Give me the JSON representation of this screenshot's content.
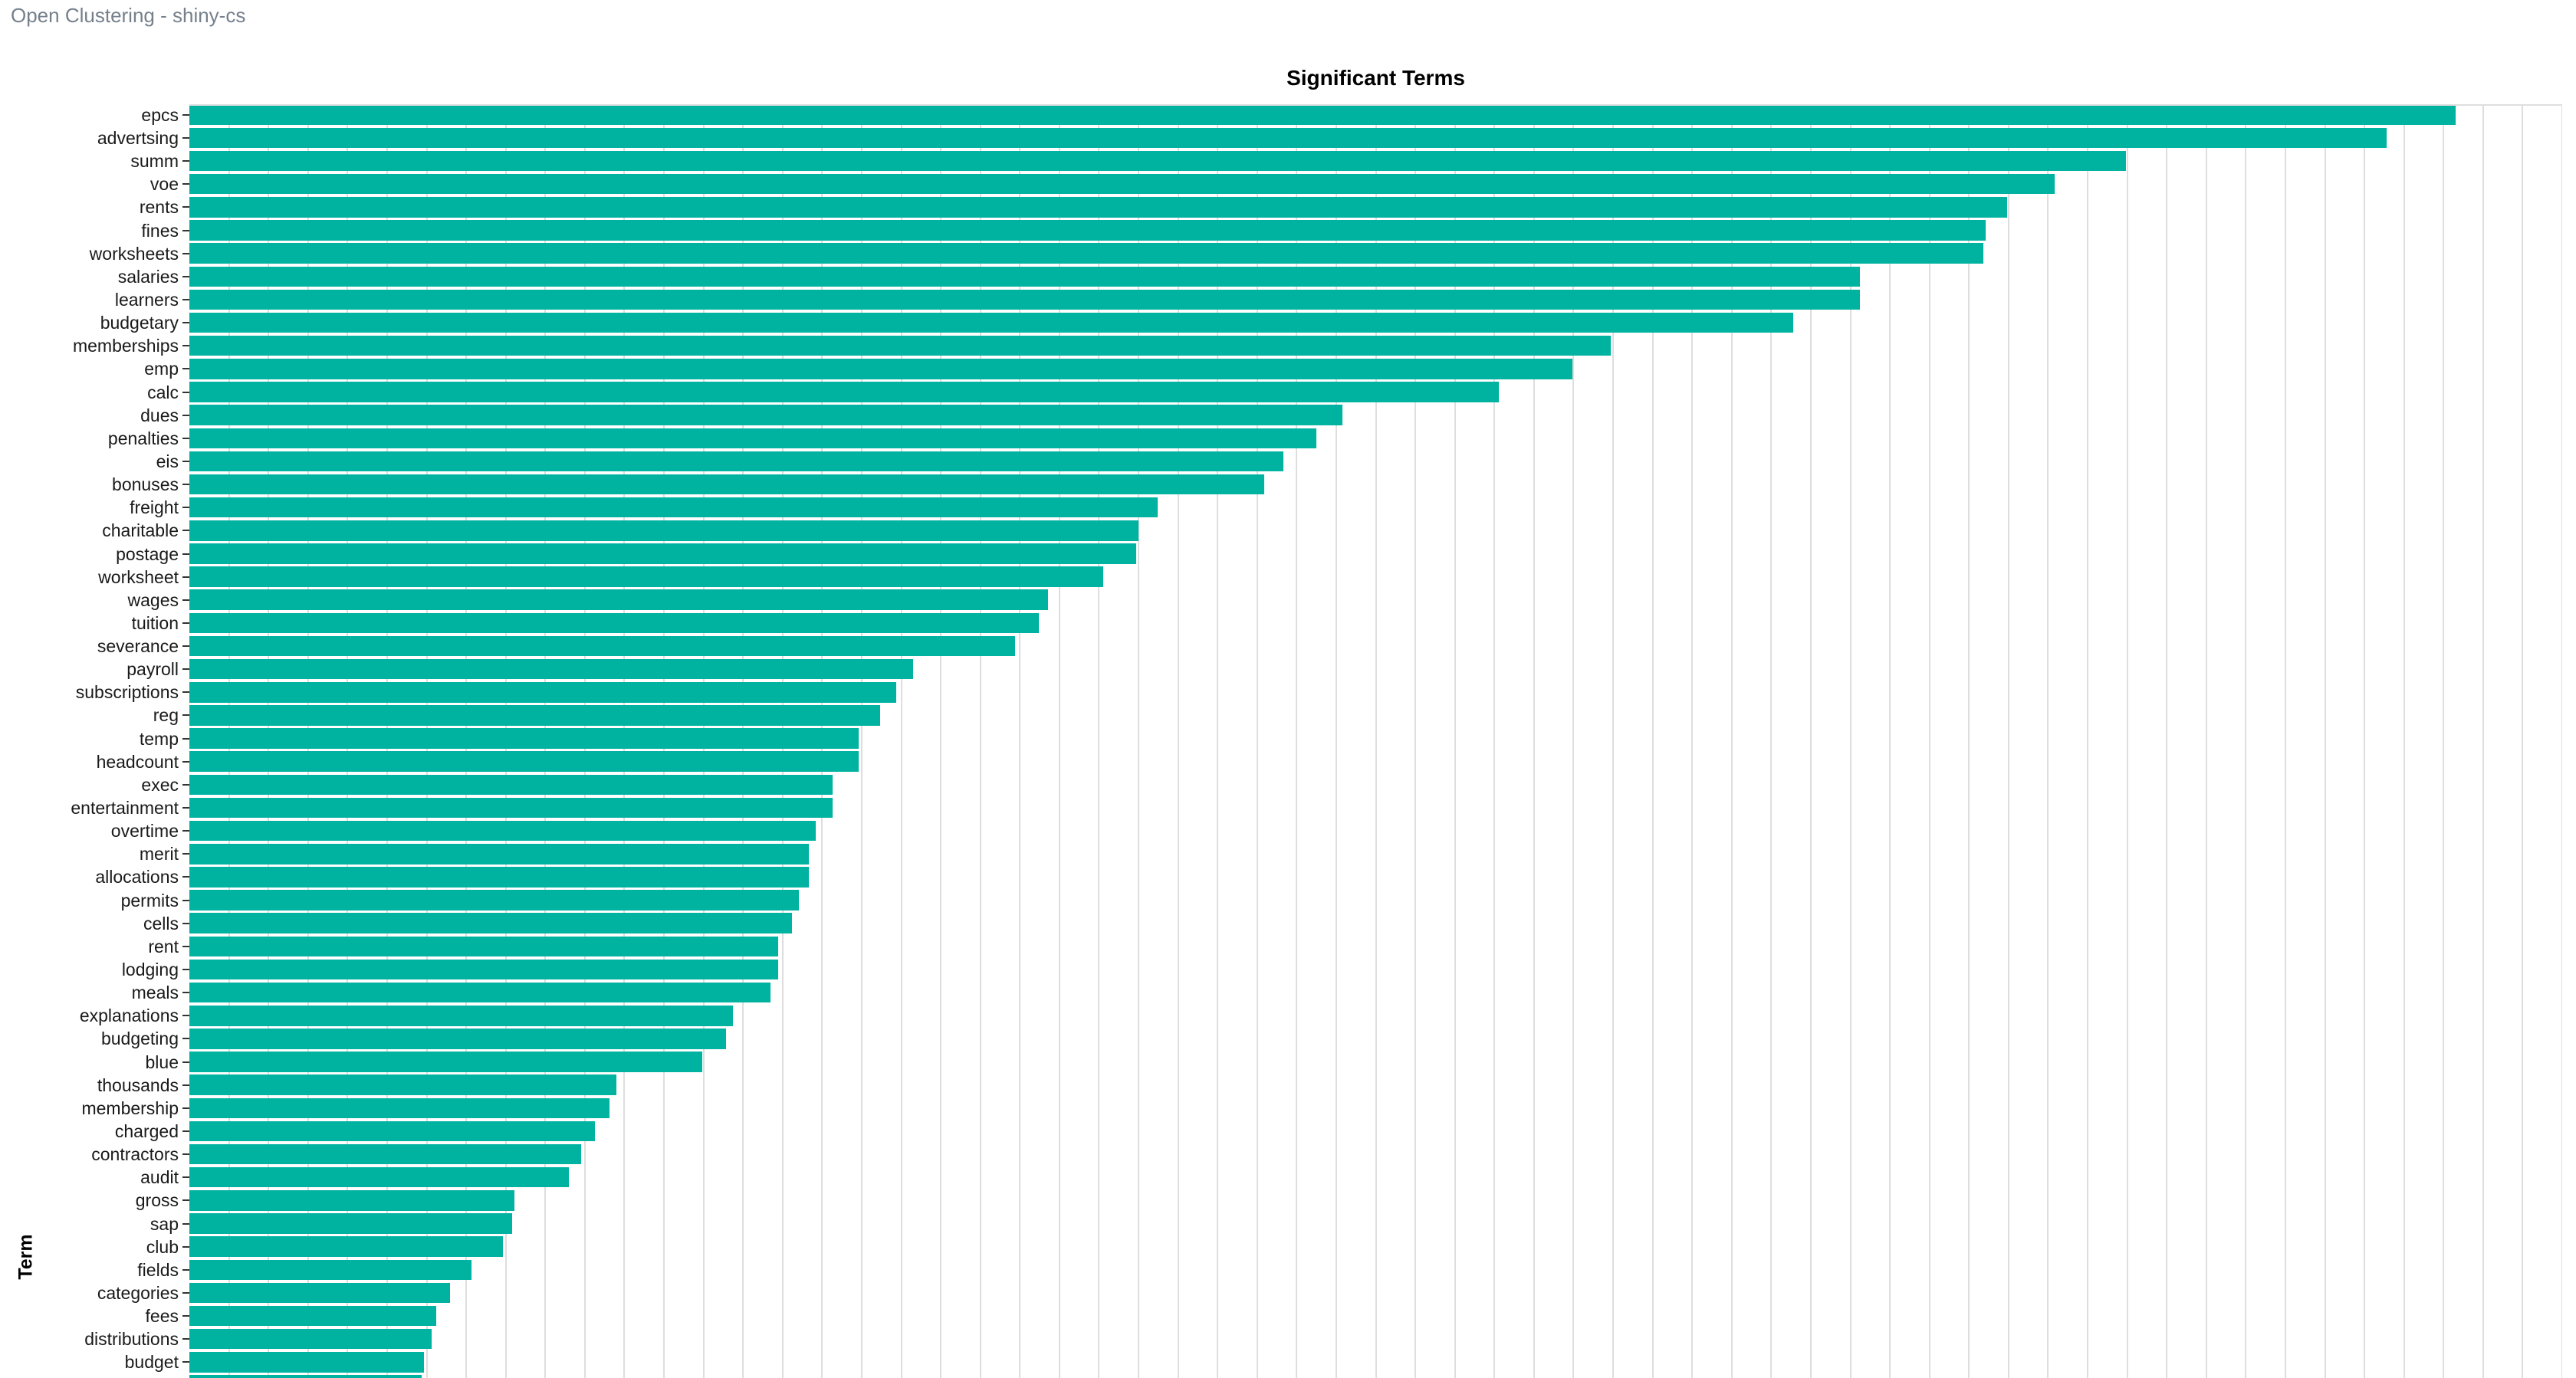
{
  "header": {
    "title": "Open Clustering - shiny-cs",
    "text_color": "#75808c"
  },
  "chart": {
    "title": "Significant Terms",
    "y_axis_title": "Term",
    "bar_color": "#00b2a0",
    "gridline_color": "#dedede",
    "tick_color": "#333333",
    "label_color": "#1a1a1a"
  },
  "chart_data": {
    "type": "bar",
    "orientation": "horizontal",
    "title": "Significant Terms",
    "xlabel": "",
    "ylabel": "Term",
    "x_axis_tick_labels_visible": false,
    "value_scale": "percent_of_panel_width",
    "grid": {
      "vertical_gridline_count": 60,
      "horizontal_gridlines": false
    },
    "categories": [
      "epcs",
      "advertsing",
      "summ",
      "voe",
      "rents",
      "fines",
      "worksheets",
      "salaries",
      "learners",
      "budgetary",
      "memberships",
      "emp",
      "calc",
      "dues",
      "penalties",
      "eis",
      "bonuses",
      "freight",
      "charitable",
      "postage",
      "worksheet",
      "wages",
      "tuition",
      "severance",
      "payroll",
      "subscriptions",
      "reg",
      "temp",
      "headcount",
      "exec",
      "entertainment",
      "overtime",
      "merit",
      "allocations",
      "permits",
      "cells",
      "rent",
      "lodging",
      "meals",
      "explanations",
      "budgeting",
      "blue",
      "thousands",
      "membership",
      "charged",
      "contractors",
      "audit",
      "gross",
      "sap",
      "club",
      "fields",
      "categories",
      "fees",
      "distributions",
      "budget"
    ],
    "values": [
      95.5,
      92.6,
      81.6,
      78.6,
      76.6,
      75.7,
      75.6,
      70.4,
      70.4,
      67.6,
      59.9,
      58.3,
      55.2,
      48.6,
      47.5,
      46.1,
      45.3,
      40.8,
      40.0,
      39.9,
      38.5,
      36.2,
      35.8,
      34.8,
      30.5,
      29.8,
      29.1,
      28.2,
      28.2,
      27.1,
      27.1,
      26.4,
      26.1,
      26.1,
      25.7,
      25.4,
      24.8,
      24.8,
      24.5,
      22.9,
      22.6,
      21.6,
      18.0,
      17.7,
      17.1,
      16.5,
      16.0,
      13.7,
      13.6,
      13.2,
      11.9,
      11.0,
      10.4,
      10.2,
      9.9
    ],
    "partial_bottom_bar_value": 9.8
  }
}
